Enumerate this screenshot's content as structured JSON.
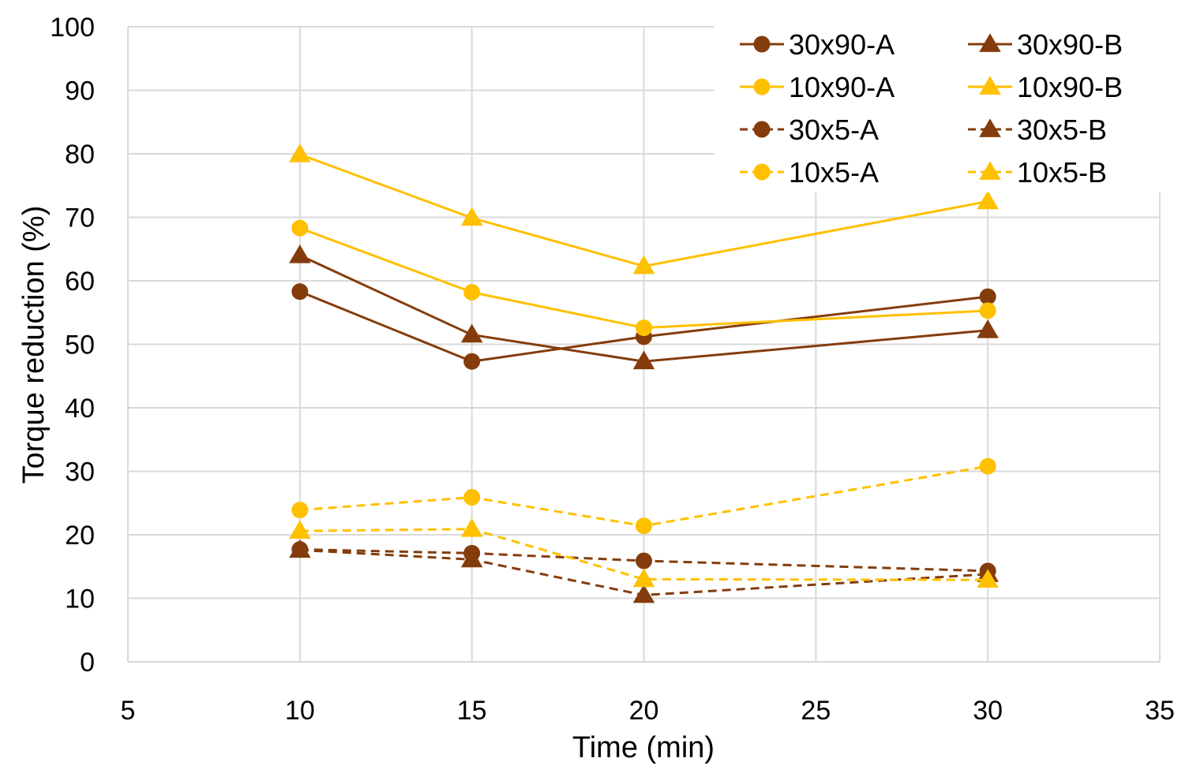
{
  "chart_data": {
    "type": "line",
    "title": "",
    "xlabel": "Time (min)",
    "ylabel": "Torque reduction (%)",
    "xlim": [
      5,
      35
    ],
    "ylim": [
      0,
      100
    ],
    "xticks": [
      5,
      10,
      15,
      20,
      25,
      30,
      35
    ],
    "yticks": [
      0,
      10,
      20,
      30,
      40,
      50,
      60,
      70,
      80,
      90,
      100
    ],
    "grid": true,
    "legend_position": "top-right",
    "x": [
      10,
      15,
      20,
      30
    ],
    "series": [
      {
        "name": "30x90-A",
        "color": "#843C0C",
        "marker": "circle",
        "dash": false,
        "values": [
          58.3,
          47.3,
          51.2,
          57.5
        ]
      },
      {
        "name": "30x90-B",
        "color": "#843C0C",
        "marker": "triangle",
        "dash": false,
        "values": [
          64.0,
          51.5,
          47.3,
          52.2
        ]
      },
      {
        "name": "10x90-A",
        "color": "#FFC000",
        "marker": "circle",
        "dash": false,
        "values": [
          68.3,
          58.2,
          52.6,
          55.3
        ]
      },
      {
        "name": "10x90-B",
        "color": "#FFC000",
        "marker": "triangle",
        "dash": false,
        "values": [
          79.9,
          69.9,
          62.3,
          72.5
        ]
      },
      {
        "name": "30x5-A",
        "color": "#843C0C",
        "marker": "circle",
        "dash": true,
        "values": [
          17.7,
          17.1,
          15.9,
          14.3
        ]
      },
      {
        "name": "30x5-B",
        "color": "#843C0C",
        "marker": "triangle",
        "dash": true,
        "values": [
          17.6,
          16.1,
          10.5,
          13.8
        ]
      },
      {
        "name": "10x5-A",
        "color": "#FFC000",
        "marker": "circle",
        "dash": true,
        "values": [
          23.9,
          25.9,
          21.4,
          30.8
        ]
      },
      {
        "name": "10x5-B",
        "color": "#FFC000",
        "marker": "triangle",
        "dash": true,
        "values": [
          20.6,
          20.9,
          13.0,
          12.9
        ]
      }
    ]
  }
}
